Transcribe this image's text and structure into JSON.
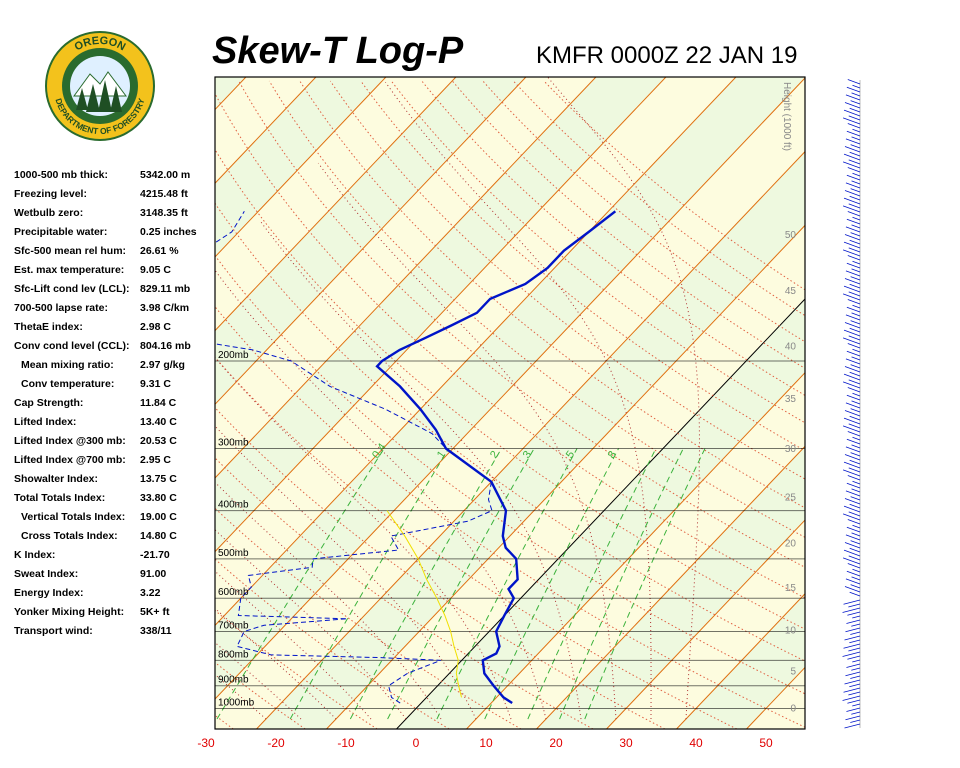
{
  "header": {
    "title": "Skew-T Log-P",
    "station_time": "KMFR 0000Z 22 JAN 19"
  },
  "logo": {
    "top_text": "OREGON",
    "bottom_text": "DEPARTMENT OF FORESTRY",
    "colors": {
      "ring": "#f3c21c",
      "field": "#2a6b2e",
      "tree": "#1f4f24",
      "sky": "#dff0ff"
    }
  },
  "stats": [
    {
      "label": "1000-500 mb thick:",
      "value": "5342.00 m"
    },
    {
      "label": "Freezing level:",
      "value": "4215.48 ft"
    },
    {
      "label": "Wetbulb zero:",
      "value": "3148.35 ft"
    },
    {
      "label": "Precipitable water:",
      "value": "0.25 inches"
    },
    {
      "label": "Sfc-500 mean rel hum:",
      "value": "26.61 %"
    },
    {
      "label": "Est. max temperature:",
      "value": "9.05 C"
    },
    {
      "label": "Sfc-Lift cond lev (LCL):",
      "value": "829.11 mb"
    },
    {
      "label": "700-500 lapse rate:",
      "value": "3.98 C/km"
    },
    {
      "label": "ThetaE index:",
      "value": "2.98 C"
    },
    {
      "label": "Conv cond level (CCL):",
      "value": "804.16 mb"
    },
    {
      "label": "Mean mixing ratio:",
      "value": "2.97 g/kg",
      "indent": true
    },
    {
      "label": "Conv temperature:",
      "value": "9.31 C",
      "indent": true
    },
    {
      "label": "Cap Strength:",
      "value": "11.84 C"
    },
    {
      "label": "Lifted Index:",
      "value": "13.40 C"
    },
    {
      "label": "Lifted Index @300 mb:",
      "value": "20.53 C"
    },
    {
      "label": "Lifted Index @700 mb:",
      "value": "2.95 C"
    },
    {
      "label": "Showalter Index:",
      "value": "13.75 C"
    },
    {
      "label": "Total Totals Index:",
      "value": "33.80 C"
    },
    {
      "label": "Vertical Totals Index:",
      "value": "19.00 C",
      "indent": true
    },
    {
      "label": "Cross Totals Index:",
      "value": "14.80 C",
      "indent": true
    },
    {
      "label": "K Index:",
      "value": "-21.70"
    },
    {
      "label": "Sweat Index:",
      "value": "91.00"
    },
    {
      "label": "Energy Index:",
      "value": "3.22"
    },
    {
      "label": "Yonker Mixing Height:",
      "value": "5K+ ft"
    },
    {
      "label": "Transport wind:",
      "value": "338/11"
    }
  ],
  "chart_data": {
    "type": "line",
    "subtype": "skew-t log-p",
    "x_axis": {
      "unit": "C",
      "ticks": [
        -30,
        -20,
        -10,
        0,
        10,
        20,
        30,
        40,
        50
      ],
      "tick_labels": [
        "-30",
        "-20",
        "-10",
        "0",
        "10",
        "20",
        "30",
        "40",
        "50"
      ],
      "tick_color": "#e00000"
    },
    "pressure_levels": [
      {
        "p": 200,
        "label": "200mb"
      },
      {
        "p": 300,
        "label": "300mb"
      },
      {
        "p": 400,
        "label": "400mb"
      },
      {
        "p": 500,
        "label": "500mb"
      },
      {
        "p": 600,
        "label": "600mb"
      },
      {
        "p": 700,
        "label": "700mb"
      },
      {
        "p": 800,
        "label": "800mb"
      },
      {
        "p": 900,
        "label": "900mb"
      },
      {
        "p": 1000,
        "label": "1000mb"
      }
    ],
    "height_axis": {
      "label": "Height (1000 ft)",
      "ticks": [
        0,
        5,
        10,
        15,
        20,
        25,
        30,
        35,
        40,
        45,
        50
      ],
      "tick_labels": [
        "0",
        "5",
        "10",
        "15",
        "20",
        "25",
        "30",
        "35",
        "40",
        "45",
        "50"
      ]
    },
    "mixing_ratio_labels": [
      "0.4",
      "1",
      "2",
      "3",
      "5",
      "8"
    ],
    "series": [
      {
        "role": "temperature",
        "color": "#0014c8",
        "style": "solid",
        "points": [
          [
            975,
            13
          ],
          [
            950,
            11
          ],
          [
            900,
            8
          ],
          [
            850,
            5
          ],
          [
            800,
            3
          ],
          [
            775,
            4
          ],
          [
            750,
            3.5
          ],
          [
            700,
            1
          ],
          [
            650,
            0
          ],
          [
            600,
            -1
          ],
          [
            575,
            -3
          ],
          [
            550,
            -3
          ],
          [
            500,
            -6
          ],
          [
            475,
            -9
          ],
          [
            450,
            -11
          ],
          [
            400,
            -14
          ],
          [
            350,
            -20
          ],
          [
            300,
            -31
          ],
          [
            275,
            -35
          ],
          [
            250,
            -40
          ],
          [
            225,
            -46
          ],
          [
            205,
            -52
          ],
          [
            200,
            -52
          ],
          [
            190,
            -51
          ],
          [
            180,
            -49
          ],
          [
            170,
            -47
          ],
          [
            160,
            -45
          ],
          [
            150,
            -45
          ],
          [
            140,
            -42
          ],
          [
            130,
            -41
          ],
          [
            120,
            -41
          ],
          [
            110,
            -40
          ],
          [
            100,
            -39
          ]
        ]
      },
      {
        "role": "dewpoint",
        "color": "#0014c8",
        "style": "dashed",
        "points": [
          [
            975,
            -3
          ],
          [
            950,
            -5
          ],
          [
            900,
            -7
          ],
          [
            850,
            -6
          ],
          [
            800,
            -3
          ],
          [
            790,
            -12
          ],
          [
            780,
            -28
          ],
          [
            750,
            -34
          ],
          [
            700,
            -35
          ],
          [
            680,
            -33
          ],
          [
            660,
            -22
          ],
          [
            650,
            -38
          ],
          [
            600,
            -40
          ],
          [
            570,
            -40
          ],
          [
            540,
            -42
          ],
          [
            520,
            -34
          ],
          [
            500,
            -35
          ],
          [
            480,
            -24
          ],
          [
            450,
            -27
          ],
          [
            420,
            -18
          ],
          [
            400,
            -16
          ],
          [
            380,
            -18
          ],
          [
            350,
            -20
          ],
          [
            300,
            -31
          ],
          [
            280,
            -35
          ],
          [
            250,
            -45
          ],
          [
            225,
            -56
          ],
          [
            200,
            -65
          ],
          [
            190,
            -72
          ],
          [
            180,
            -84
          ],
          [
            170,
            -86
          ],
          [
            160,
            -90
          ],
          [
            150,
            -96
          ],
          [
            130,
            -94
          ],
          [
            110,
            -91
          ],
          [
            100,
            -92
          ]
        ]
      },
      {
        "role": "parcel",
        "color": "#f0e000",
        "style": "solid",
        "points": [
          [
            950,
            5
          ],
          [
            900,
            3
          ],
          [
            850,
            1
          ],
          [
            800,
            -0.5
          ],
          [
            750,
            -3
          ],
          [
            700,
            -5.5
          ],
          [
            650,
            -8.5
          ],
          [
            600,
            -12
          ],
          [
            550,
            -16
          ],
          [
            500,
            -20
          ],
          [
            450,
            -25
          ],
          [
            400,
            -31
          ]
        ]
      }
    ],
    "wind_profile": {
      "color": "#0014c8",
      "shown": true
    },
    "colors": {
      "background_bands": [
        "#eef9df",
        "#fdfcdf"
      ],
      "isotherm": "#e07010",
      "dry_adiabat": "#e06040",
      "moist_adiabat": "#b03030",
      "mixing_ratio": "#3cb23c",
      "zero_isotherm": "#000000",
      "isobar": "#000000"
    },
    "grid": true
  }
}
